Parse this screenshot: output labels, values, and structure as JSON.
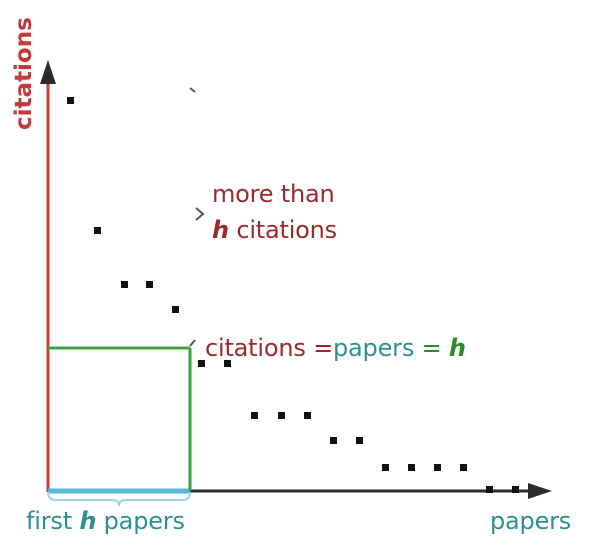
{
  "labels": {
    "y_axis": "citations",
    "x_axis": "papers",
    "more_than_line1": "more than",
    "more_than_h": "h",
    "more_than_citations": " citations",
    "eq_citations": "citations",
    "eq_equals1": " =",
    "eq_papers": "papers",
    "eq_equals2": " = ",
    "eq_h": "h",
    "first_prefix": "first ",
    "first_h": "h",
    "first_suffix": " papers"
  },
  "colors": {
    "axis_y": "#d23b3b",
    "axis_x": "#2b2b2b",
    "x_overlay": "#59b7de",
    "h_box": "#3fa23f",
    "points": "#111111",
    "brace": "#9fd3ea"
  }
}
